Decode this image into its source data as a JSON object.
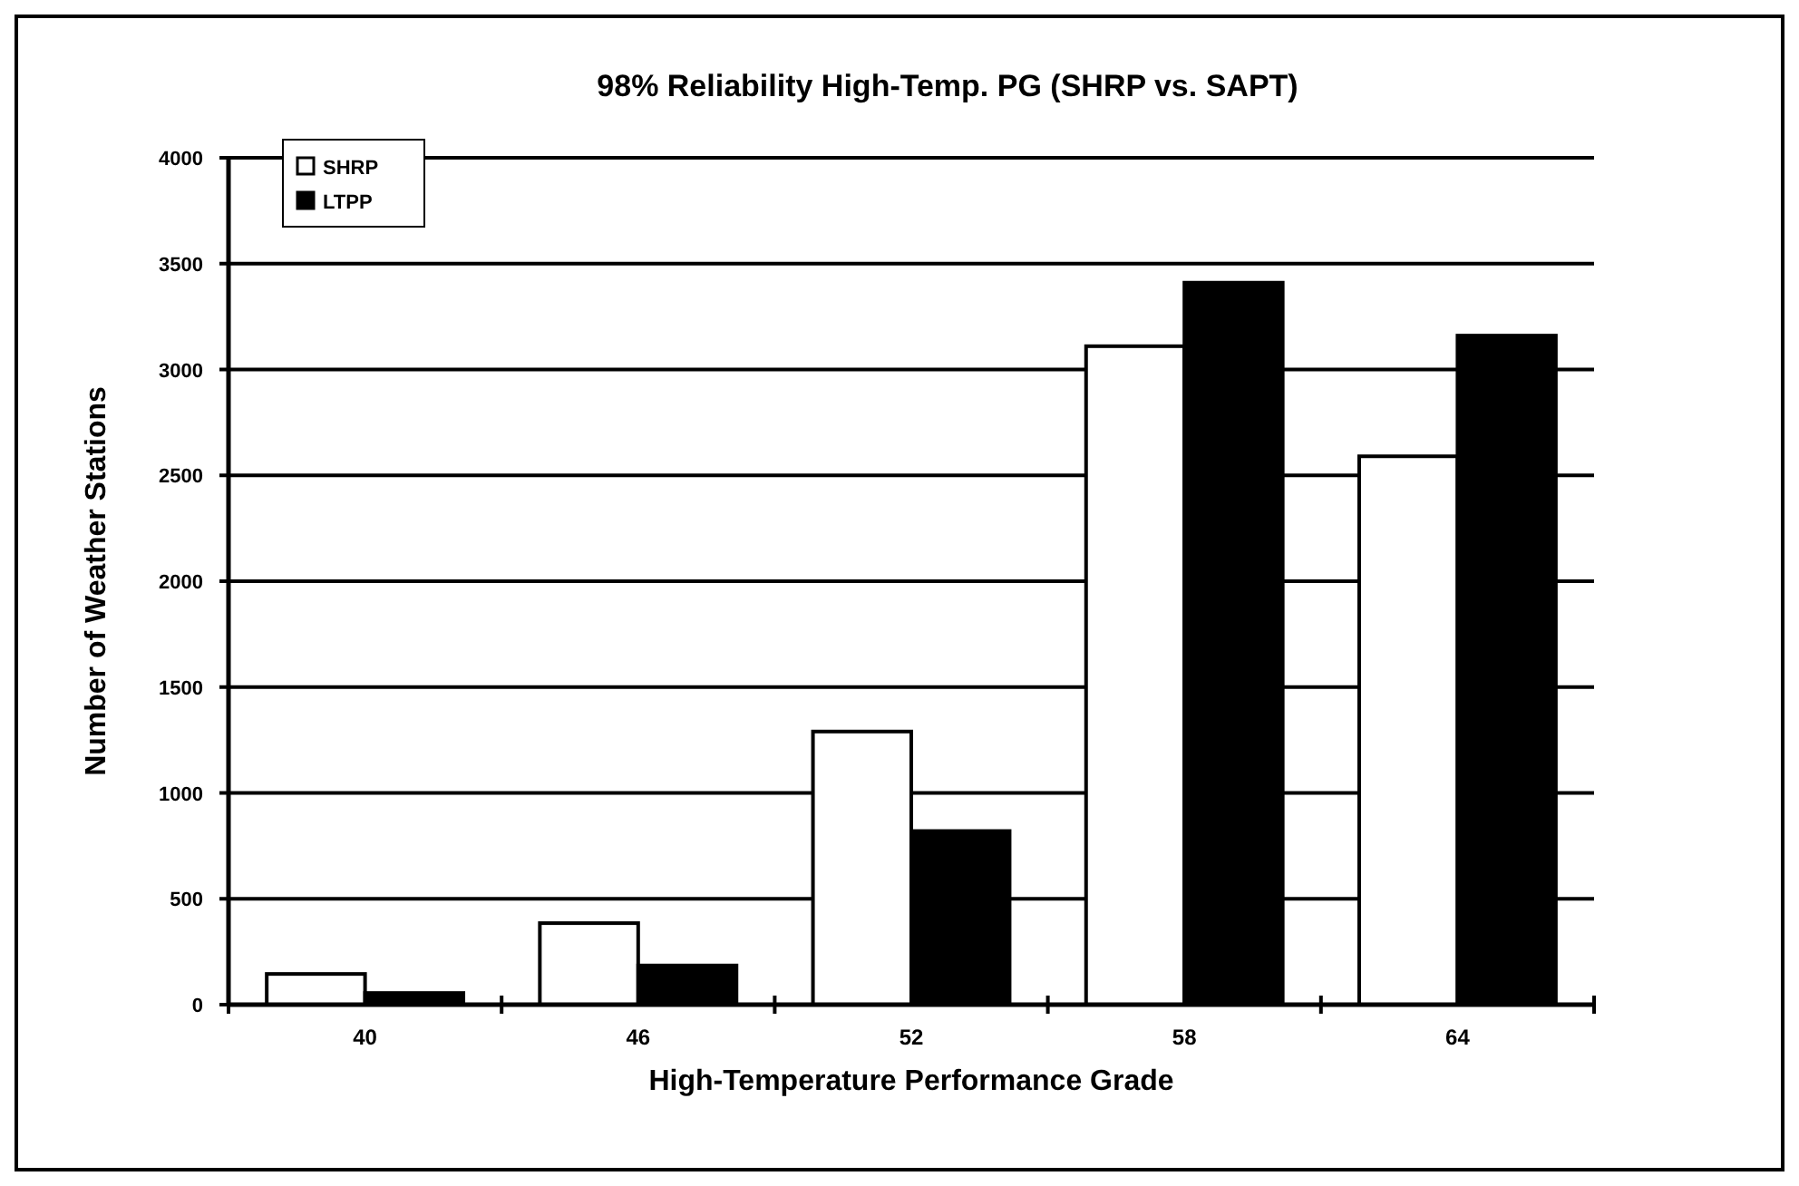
{
  "chart_data": {
    "type": "bar",
    "title": "98% Reliability High-Temp. PG (SHRP vs. SAPT)",
    "xlabel": "High-Temperature Performance Grade",
    "ylabel": "Number of Weather Stations",
    "categories": [
      "40",
      "46",
      "52",
      "58",
      "64"
    ],
    "series": [
      {
        "name": "SHRP",
        "color": "#ffffff",
        "values": [
          145,
          385,
          1290,
          3110,
          2590
        ]
      },
      {
        "name": "LTPP",
        "color": "#000000",
        "values": [
          55,
          185,
          820,
          3410,
          3160
        ]
      }
    ],
    "ylim": [
      0,
      4000
    ],
    "yticks": [
      0,
      500,
      1000,
      1500,
      2000,
      2500,
      3000,
      3500,
      4000
    ],
    "grid": "y",
    "legend": "top left"
  }
}
